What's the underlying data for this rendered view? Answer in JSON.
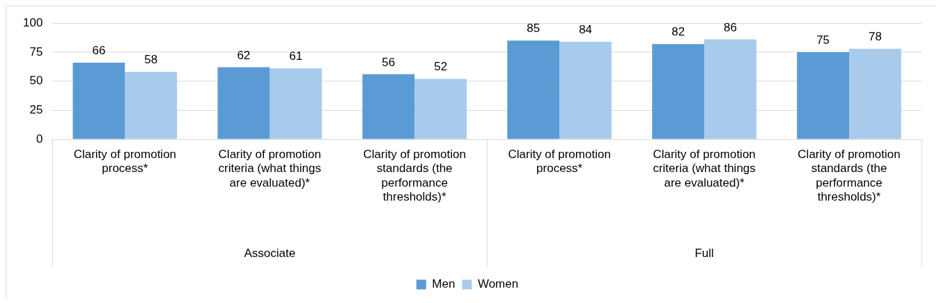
{
  "chart_data": {
    "type": "bar",
    "categories": [
      "Clarity of promotion process*",
      "Clarity of promotion criteria (what things are evaluated)*",
      "Clarity of promotion standards (the performance thresholds)*",
      "Clarity of promotion process*",
      "Clarity of promotion criteria (what things are evaluated)*",
      "Clarity of promotion standards (the performance thresholds)*"
    ],
    "series": [
      {
        "name": "Men",
        "color": "#5b9bd5",
        "values": [
          66,
          62,
          56,
          85,
          82,
          75
        ]
      },
      {
        "name": "Women",
        "color": "#a9cbeb",
        "values": [
          58,
          61,
          52,
          84,
          86,
          78
        ]
      }
    ],
    "annotations": [
      "Associate",
      "Full"
    ],
    "ylim": [
      0,
      100
    ],
    "yticks": [
      0,
      25,
      50,
      75,
      100
    ],
    "grid": "y",
    "legend": "bottom",
    "data_labels": true
  }
}
